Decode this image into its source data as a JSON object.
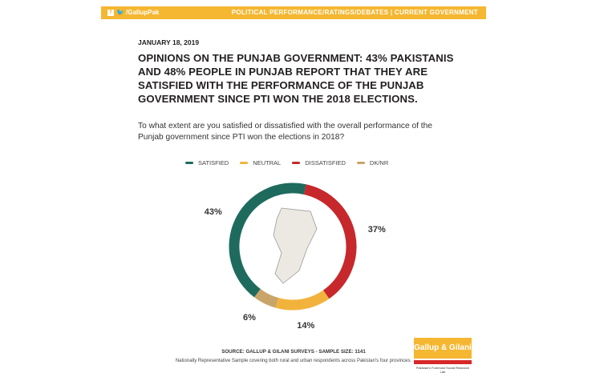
{
  "header": {
    "handle": "/GallupPak",
    "section": "POLITICAL PERFORMANCE/RATINGS/DEBATES | CURRENT GOVERNMENT",
    "fb_icon": "f",
    "tw_icon": "🐦"
  },
  "date": "JANUARY 18, 2019",
  "headline": "OPINIONS ON THE PUNJAB GOVERNMENT: 43% PAKISTANIS AND 48% PEOPLE IN PUNJAB REPORT THAT THEY ARE SATISFIED WITH THE PERFORMANCE OF THE PUNJAB GOVERNMENT SINCE PTI WON THE 2018 ELECTIONS.",
  "question": "To what extent are you satisfied or dissatisfied with the overall performance of the Punjab government since PTI won the elections in 2018?",
  "chart_data": {
    "type": "pie",
    "style": "donut",
    "legend_position": "top",
    "slices": [
      {
        "name": "SATISFIED",
        "value": 43,
        "label": "43%",
        "color": "#1e6b5e"
      },
      {
        "name": "DISSATISFIED",
        "value": 37,
        "label": "37%",
        "color": "#c6282b"
      },
      {
        "name": "NEUTRAL",
        "value": 14,
        "label": "14%",
        "color": "#f2b33d"
      },
      {
        "name": "DK/NR",
        "value": 6,
        "label": "6%",
        "color": "#c9a56a"
      }
    ],
    "legend_order": [
      "SATISFIED",
      "NEUTRAL",
      "DISSATISFIED",
      "DK/NR"
    ]
  },
  "source": "SOURCE: GALLUP & GILANI SURVEYS - SAMPLE SIZE: 1141",
  "note": "Nationally Representative Sample covering both rural and urban respondents across Pakistan's four provinces.",
  "logo": {
    "text": "Gallup & Gilani",
    "tagline": "Pakistan's Foremost Social Research Lab"
  }
}
